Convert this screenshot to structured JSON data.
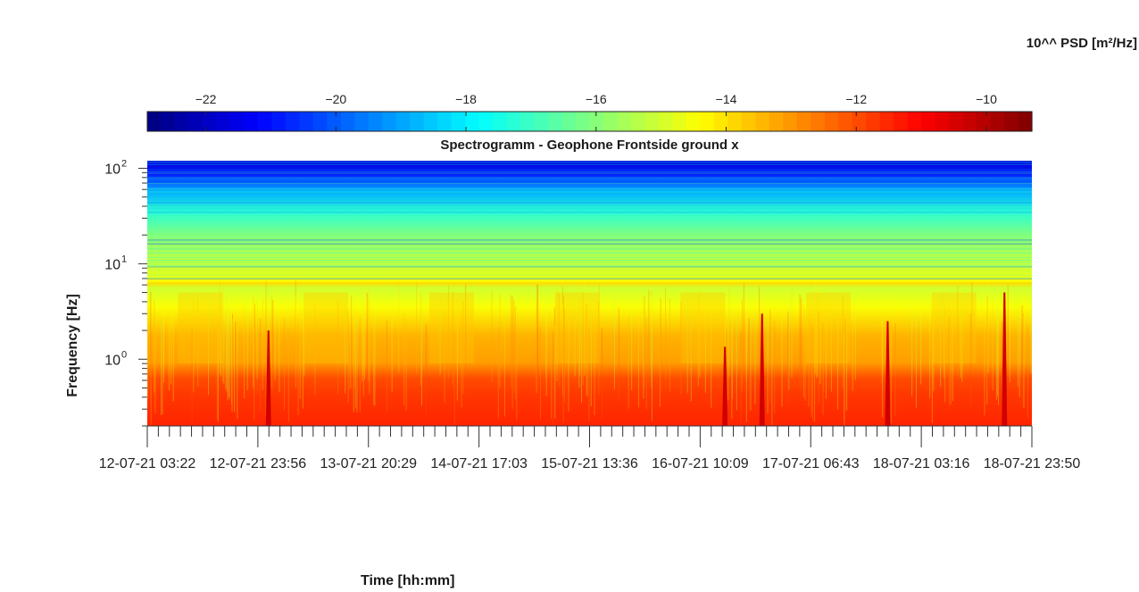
{
  "chart_data": {
    "type": "heatmap",
    "title": "Spectrogramm - Geophone Frontside ground x",
    "xlabel": "Time [hh:mm]",
    "ylabel": "Frequency [Hz]",
    "colorbar": {
      "label": "10^^ PSD [m²/Hz]",
      "ticks": [
        -22,
        -20,
        -18,
        -16,
        -14,
        -12,
        -10
      ],
      "range": [
        -22.9,
        -9.3
      ],
      "colormap": "jet"
    },
    "x_tick_labels": [
      "12-07-21  03:22",
      "12-07-21  23:56",
      "13-07-21  20:29",
      "14-07-21  17:03",
      "15-07-21  13:36",
      "16-07-21  10:09",
      "17-07-21  06:43",
      "18-07-21  03:16",
      "18-07-21  23:50"
    ],
    "y_scale": "log",
    "y_tick_labels": [
      {
        "base": "10",
        "exp": "0",
        "value": 1
      },
      {
        "base": "10",
        "exp": "1",
        "value": 10
      },
      {
        "base": "10",
        "exp": "2",
        "value": 100
      }
    ],
    "ylim": [
      0.2,
      120
    ],
    "spikes": [
      {
        "time_fraction": 0.137,
        "peak_freq": 2
      },
      {
        "time_fraction": 0.653,
        "peak_freq": 1.35
      },
      {
        "time_fraction": 0.695,
        "peak_freq": 3
      },
      {
        "time_fraction": 0.837,
        "peak_freq": 2.5
      },
      {
        "time_fraction": 0.969,
        "peak_freq": 5
      }
    ]
  }
}
